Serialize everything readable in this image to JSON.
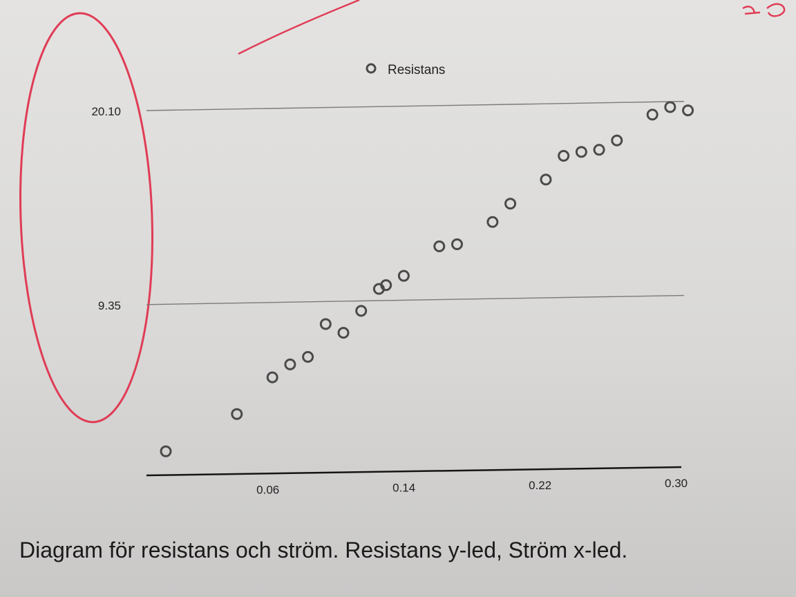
{
  "caption": "Diagram för resistans och ström. Resistans y-led, Ström x-led.",
  "chart_data": {
    "type": "scatter",
    "legend": {
      "label": "Resistans",
      "placement": "top-center"
    },
    "x_ticks": [
      "0.06",
      "0.14",
      "0.22",
      "0.30"
    ],
    "y_ticks": [
      "9.35",
      "20.10"
    ],
    "xlim": [
      0.0,
      0.3
    ],
    "ylim": [
      0.0,
      20.1
    ],
    "grid": {
      "horizontal": true,
      "vertical": false
    },
    "series": [
      {
        "marker": "open-circle",
        "x": [
          0.01,
          0.05,
          0.07,
          0.08,
          0.09,
          0.1,
          0.11,
          0.12,
          0.13,
          0.134,
          0.144,
          0.164,
          0.174,
          0.194,
          0.204,
          0.224,
          0.234,
          0.244,
          0.254,
          0.264,
          0.284,
          0.294,
          0.304
        ],
        "y": [
          1.2,
          3.2,
          5.2,
          5.9,
          6.3,
          8.1,
          7.6,
          8.8,
          10.0,
          10.2,
          10.7,
          12.3,
          12.4,
          13.6,
          14.6,
          15.9,
          17.2,
          17.4,
          17.5,
          18.0,
          19.4,
          19.8,
          19.6
        ]
      }
    ]
  },
  "annotations": {
    "stroke_color": "#e03c55",
    "marker_color": "#4a4a4a"
  }
}
